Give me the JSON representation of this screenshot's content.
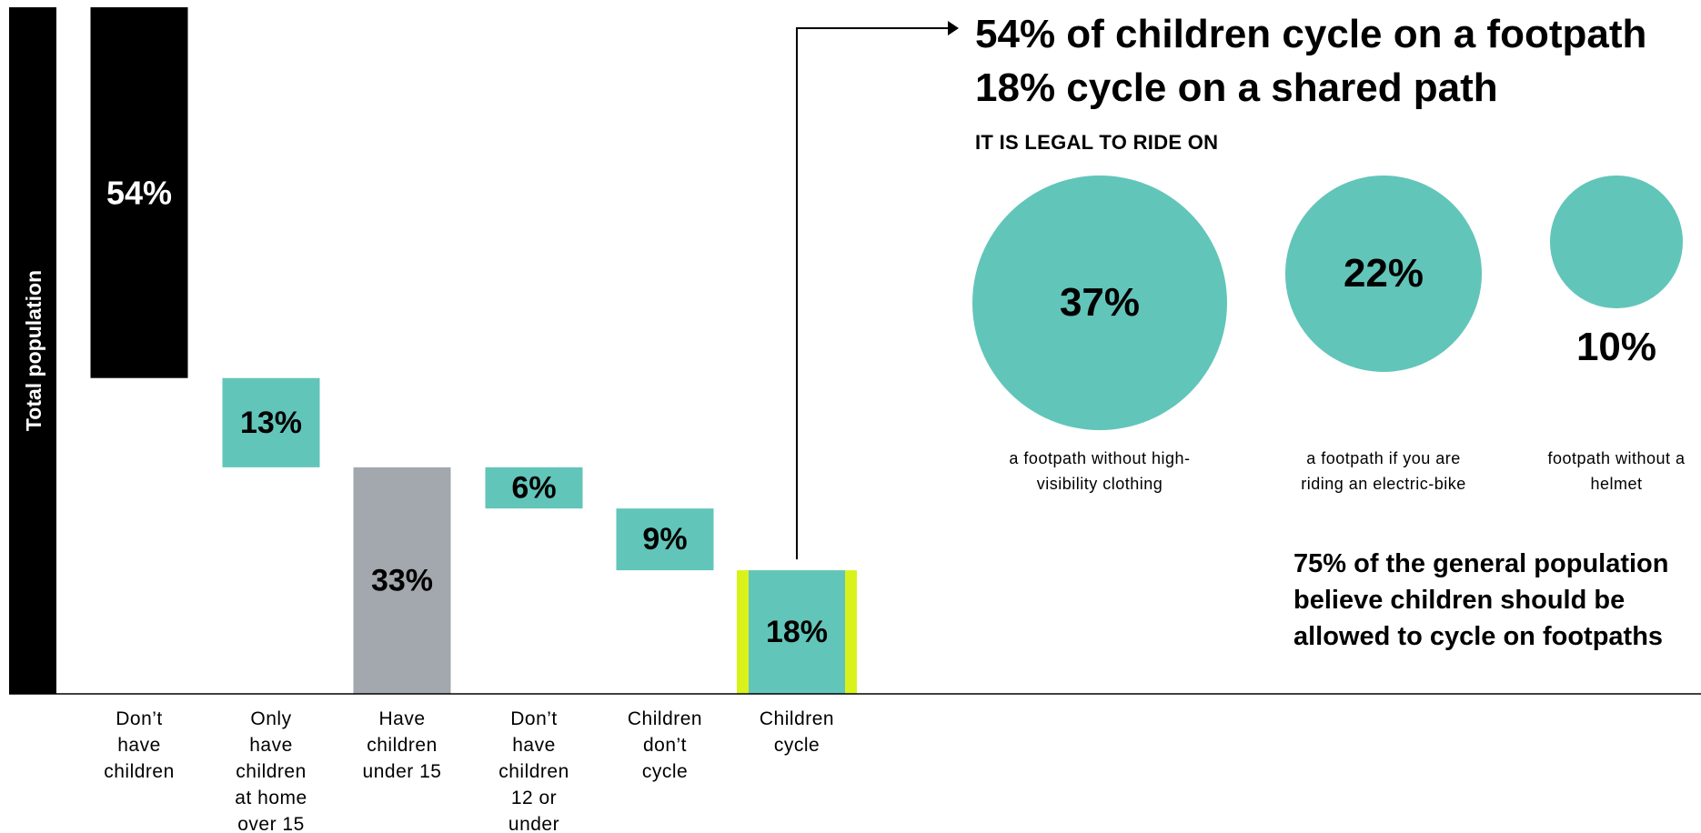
{
  "chart_data": {
    "type": "bar",
    "subtype": "waterfall",
    "ylabel": "Total population",
    "categories": [
      "Don’t have children",
      "Only have children at home over 15",
      "Have children under 15",
      "Don’t have children 12 or under",
      "Children don’t cycle",
      "Children cycle"
    ],
    "category_lines": [
      [
        "Don’t",
        "have",
        "children"
      ],
      [
        "Only",
        "have",
        "children",
        "at home",
        "over 15"
      ],
      [
        "Have",
        "children",
        "under 15"
      ],
      [
        "Don’t",
        "have",
        "children",
        "12 or",
        "under"
      ],
      [
        "Children",
        "don’t",
        "cycle"
      ],
      [
        "Children",
        "cycle"
      ]
    ],
    "values": [
      54,
      13,
      33,
      6,
      9,
      18
    ],
    "value_labels": [
      "54%",
      "13%",
      "33%",
      "6%",
      "9%",
      "18%"
    ],
    "offsets": [
      46,
      33,
      0,
      27,
      18,
      0
    ],
    "bar_colors": [
      "#000000",
      "#62c5b9",
      "#a2a8ae",
      "#62c5b9",
      "#62c5b9",
      "#62c5b9"
    ],
    "label_colors": [
      "#ffffff",
      "#000000",
      "#000000",
      "#000000",
      "#000000",
      "#000000"
    ],
    "highlight_border_color": "#d9f21c",
    "highlight_index": 5,
    "total_bar_value": 100,
    "total_bar_color": "#000000",
    "ylim": [
      0,
      100
    ]
  },
  "headline": {
    "line1": "54% of children cycle on a footpath",
    "line2": "18% cycle on a shared path"
  },
  "legal": {
    "heading": "IT IS LEGAL TO RIDE ON",
    "items": [
      {
        "value": 37,
        "label": "37%",
        "caption_lines": [
          "a footpath without high-",
          "visibility clothing"
        ]
      },
      {
        "value": 22,
        "label": "22%",
        "caption_lines": [
          "a footpath if you are",
          "riding an electric-bike"
        ]
      },
      {
        "value": 10,
        "label": "10%",
        "caption_lines": [
          "footpath without a",
          "helmet"
        ]
      }
    ],
    "bubble_color": "#62c5b9"
  },
  "note": "75% of the general population believe children should be allowed to cycle on footpaths"
}
